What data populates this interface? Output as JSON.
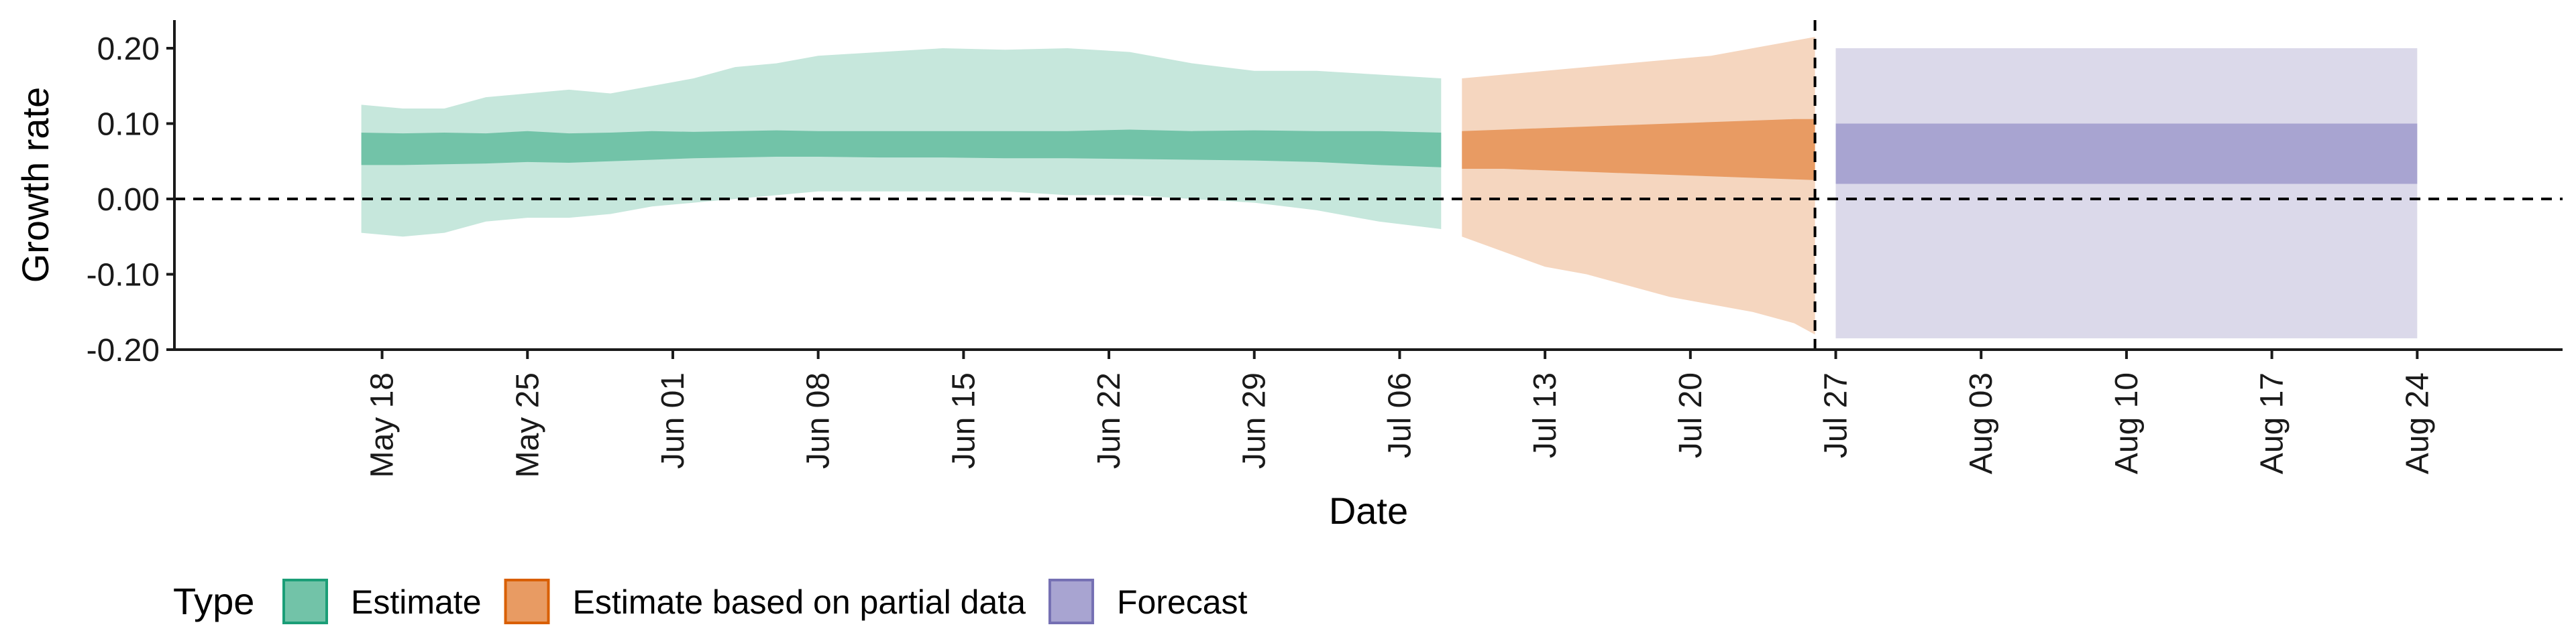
{
  "chart_data": {
    "type": "area",
    "xlabel": "Date",
    "ylabel": "Growth rate",
    "ylim": [
      -0.2,
      0.2
    ],
    "y_ticks": [
      {
        "value": 0.2,
        "label": "0.20"
      },
      {
        "value": 0.1,
        "label": "0.10"
      },
      {
        "value": 0.0,
        "label": "0.00"
      },
      {
        "value": -0.1,
        "label": "-0.10"
      },
      {
        "value": -0.2,
        "label": "-0.20"
      }
    ],
    "x_range": [
      "2020-05-08",
      "2020-08-31"
    ],
    "x_ticks": [
      {
        "date": "2020-05-18",
        "label": "May 18"
      },
      {
        "date": "2020-05-25",
        "label": "May 25"
      },
      {
        "date": "2020-06-01",
        "label": "Jun 01"
      },
      {
        "date": "2020-06-08",
        "label": "Jun 08"
      },
      {
        "date": "2020-06-15",
        "label": "Jun 15"
      },
      {
        "date": "2020-06-22",
        "label": "Jun 22"
      },
      {
        "date": "2020-06-29",
        "label": "Jun 29"
      },
      {
        "date": "2020-07-06",
        "label": "Jul 06"
      },
      {
        "date": "2020-07-13",
        "label": "Jul 13"
      },
      {
        "date": "2020-07-20",
        "label": "Jul 20"
      },
      {
        "date": "2020-07-27",
        "label": "Jul 27"
      },
      {
        "date": "2020-08-03",
        "label": "Aug 03"
      },
      {
        "date": "2020-08-10",
        "label": "Aug 10"
      },
      {
        "date": "2020-08-17",
        "label": "Aug 17"
      },
      {
        "date": "2020-08-24",
        "label": "Aug 24"
      }
    ],
    "reference_line_y": 0,
    "reference_line_date": "2020-07-26",
    "grid": false,
    "legend_position": "bottom-left",
    "legend_title": "Type",
    "series": [
      {
        "name": "Estimate",
        "color_outer": "#c6e7dc",
        "color_inner": "#72c3a8",
        "points": [
          {
            "date": "2020-05-17",
            "lower_90": -0.045,
            "upper_90": 0.125,
            "lower_50": 0.045,
            "upper_50": 0.088
          },
          {
            "date": "2020-05-19",
            "lower_90": -0.05,
            "upper_90": 0.12,
            "lower_50": 0.045,
            "upper_50": 0.087
          },
          {
            "date": "2020-05-21",
            "lower_90": -0.045,
            "upper_90": 0.12,
            "lower_50": 0.046,
            "upper_50": 0.088
          },
          {
            "date": "2020-05-23",
            "lower_90": -0.03,
            "upper_90": 0.135,
            "lower_50": 0.047,
            "upper_50": 0.087
          },
          {
            "date": "2020-05-25",
            "lower_90": -0.025,
            "upper_90": 0.14,
            "lower_50": 0.049,
            "upper_50": 0.09
          },
          {
            "date": "2020-05-27",
            "lower_90": -0.025,
            "upper_90": 0.145,
            "lower_50": 0.048,
            "upper_50": 0.087
          },
          {
            "date": "2020-05-29",
            "lower_90": -0.02,
            "upper_90": 0.14,
            "lower_50": 0.05,
            "upper_50": 0.088
          },
          {
            "date": "2020-05-31",
            "lower_90": -0.01,
            "upper_90": 0.15,
            "lower_50": 0.052,
            "upper_50": 0.09
          },
          {
            "date": "2020-06-02",
            "lower_90": -0.005,
            "upper_90": 0.16,
            "lower_50": 0.054,
            "upper_50": 0.089
          },
          {
            "date": "2020-06-04",
            "lower_90": 0.0,
            "upper_90": 0.175,
            "lower_50": 0.055,
            "upper_50": 0.09
          },
          {
            "date": "2020-06-06",
            "lower_90": 0.005,
            "upper_90": 0.18,
            "lower_50": 0.056,
            "upper_50": 0.091
          },
          {
            "date": "2020-06-08",
            "lower_90": 0.01,
            "upper_90": 0.19,
            "lower_50": 0.056,
            "upper_50": 0.09
          },
          {
            "date": "2020-06-11",
            "lower_90": 0.01,
            "upper_90": 0.195,
            "lower_50": 0.055,
            "upper_50": 0.09
          },
          {
            "date": "2020-06-14",
            "lower_90": 0.01,
            "upper_90": 0.2,
            "lower_50": 0.055,
            "upper_50": 0.09
          },
          {
            "date": "2020-06-17",
            "lower_90": 0.01,
            "upper_90": 0.198,
            "lower_50": 0.054,
            "upper_50": 0.09
          },
          {
            "date": "2020-06-20",
            "lower_90": 0.005,
            "upper_90": 0.2,
            "lower_50": 0.054,
            "upper_50": 0.09
          },
          {
            "date": "2020-06-23",
            "lower_90": 0.005,
            "upper_90": 0.195,
            "lower_50": 0.053,
            "upper_50": 0.092
          },
          {
            "date": "2020-06-26",
            "lower_90": 0.0,
            "upper_90": 0.18,
            "lower_50": 0.052,
            "upper_50": 0.09
          },
          {
            "date": "2020-06-29",
            "lower_90": -0.005,
            "upper_90": 0.17,
            "lower_50": 0.051,
            "upper_50": 0.091
          },
          {
            "date": "2020-07-02",
            "lower_90": -0.015,
            "upper_90": 0.17,
            "lower_50": 0.049,
            "upper_50": 0.09
          },
          {
            "date": "2020-07-05",
            "lower_90": -0.03,
            "upper_90": 0.165,
            "lower_50": 0.045,
            "upper_50": 0.09
          },
          {
            "date": "2020-07-08",
            "lower_90": -0.04,
            "upper_90": 0.16,
            "lower_50": 0.042,
            "upper_50": 0.088
          }
        ]
      },
      {
        "name": "Estimate based on partial data",
        "color_outer": "#f5d6bf",
        "color_inner": "#e89b63",
        "points": [
          {
            "date": "2020-07-09",
            "lower_90": -0.05,
            "upper_90": 0.16,
            "lower_50": 0.04,
            "upper_50": 0.09
          },
          {
            "date": "2020-07-11",
            "lower_90": -0.07,
            "upper_90": 0.165,
            "lower_50": 0.04,
            "upper_50": 0.092
          },
          {
            "date": "2020-07-13",
            "lower_90": -0.09,
            "upper_90": 0.17,
            "lower_50": 0.038,
            "upper_50": 0.094
          },
          {
            "date": "2020-07-15",
            "lower_90": -0.1,
            "upper_90": 0.175,
            "lower_50": 0.036,
            "upper_50": 0.096
          },
          {
            "date": "2020-07-17",
            "lower_90": -0.115,
            "upper_90": 0.18,
            "lower_50": 0.034,
            "upper_50": 0.098
          },
          {
            "date": "2020-07-19",
            "lower_90": -0.13,
            "upper_90": 0.185,
            "lower_50": 0.032,
            "upper_50": 0.1
          },
          {
            "date": "2020-07-21",
            "lower_90": -0.14,
            "upper_90": 0.19,
            "lower_50": 0.03,
            "upper_50": 0.102
          },
          {
            "date": "2020-07-23",
            "lower_90": -0.15,
            "upper_90": 0.2,
            "lower_50": 0.028,
            "upper_50": 0.104
          },
          {
            "date": "2020-07-25",
            "lower_90": -0.165,
            "upper_90": 0.21,
            "lower_50": 0.026,
            "upper_50": 0.106
          },
          {
            "date": "2020-07-26",
            "lower_90": -0.18,
            "upper_90": 0.215,
            "lower_50": 0.025,
            "upper_50": 0.106
          }
        ]
      },
      {
        "name": "Forecast",
        "color_outer": "#dbd9ea",
        "color_inner": "#a8a4d1",
        "points": [
          {
            "date": "2020-07-27",
            "lower_90": -0.185,
            "upper_90": 0.2,
            "lower_50": 0.02,
            "upper_50": 0.1
          },
          {
            "date": "2020-08-24",
            "lower_90": -0.185,
            "upper_90": 0.2,
            "lower_50": 0.02,
            "upper_50": 0.1
          }
        ]
      }
    ],
    "legend": [
      {
        "label": "Estimate",
        "fill": "#72c3a8",
        "stroke": "#1b9e77"
      },
      {
        "label": "Estimate based on partial data",
        "fill": "#e89b63",
        "stroke": "#d95f02"
      },
      {
        "label": "Forecast",
        "fill": "#a8a4d1",
        "stroke": "#7570b3"
      }
    ]
  }
}
